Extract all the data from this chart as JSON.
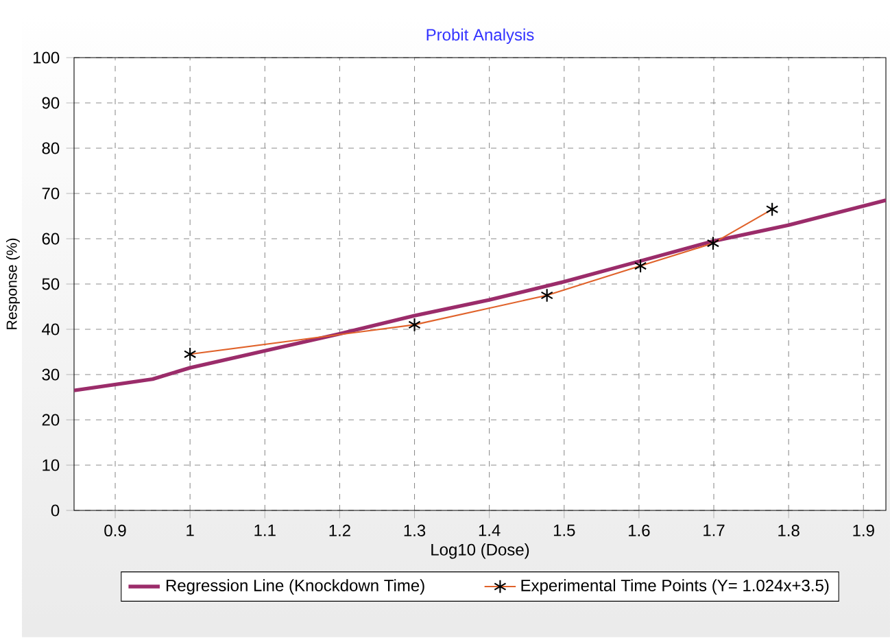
{
  "chart_data": {
    "type": "line",
    "title": "Probit Analysis",
    "xlabel": "Log10 (Dose)",
    "ylabel": "Response (%)",
    "xlim": [
      0.845,
      1.93
    ],
    "ylim": [
      0,
      100
    ],
    "xticks": [
      0.9,
      1,
      1.1,
      1.2,
      1.3,
      1.4,
      1.5,
      1.6,
      1.7,
      1.8,
      1.9
    ],
    "yticks": [
      0,
      10,
      20,
      30,
      40,
      50,
      60,
      70,
      80,
      90,
      100
    ],
    "grid": true,
    "legend": "bottom",
    "series": [
      {
        "name": "Regression Line (Knockdown Time)",
        "color": "#9b2c6a",
        "x": [
          0.845,
          0.95,
          1.0,
          1.2,
          1.3,
          1.4,
          1.5,
          1.6,
          1.7,
          1.8,
          1.93
        ],
        "values": [
          26.5,
          29,
          31.5,
          39,
          43,
          46.5,
          50.5,
          55,
          59.5,
          63,
          68.5
        ],
        "marker": "none"
      },
      {
        "name": "Experimental Time Points (Y= 1.024x+3.5)",
        "color": "#e0622a",
        "x": [
          1,
          1.3,
          1.477,
          1.602,
          1.699,
          1.778
        ],
        "values": [
          34.5,
          41,
          47.5,
          54,
          59,
          66.5
        ],
        "marker": "cross"
      }
    ]
  }
}
